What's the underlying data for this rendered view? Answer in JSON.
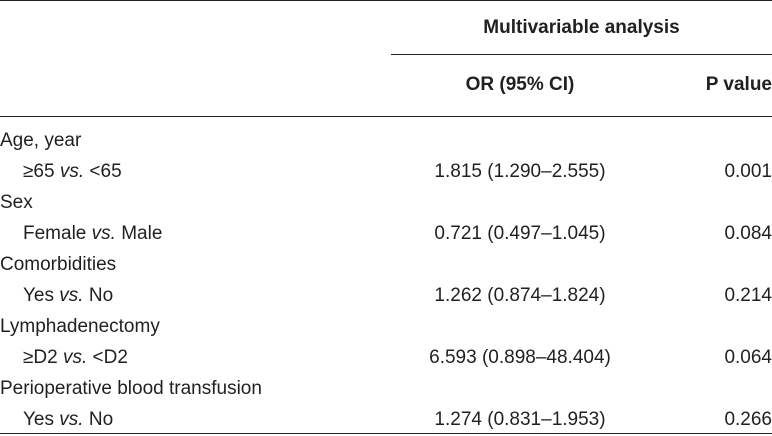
{
  "header": {
    "group_label": "Multivariable analysis",
    "col_or": "OR (95% CI)",
    "col_p": "P value"
  },
  "rows": [
    {
      "type": "group",
      "label": "Age, year"
    },
    {
      "type": "sub",
      "left": "≥65",
      "vs": "vs.",
      "right": "<65",
      "or": "1.815 (1.290–2.555)",
      "p": "0.001"
    },
    {
      "type": "group",
      "label": "Sex"
    },
    {
      "type": "sub",
      "left": "Female",
      "vs": "vs.",
      "right": "Male",
      "or": "0.721 (0.497–1.045)",
      "p": "0.084"
    },
    {
      "type": "group",
      "label": "Comorbidities"
    },
    {
      "type": "sub",
      "left": "Yes",
      "vs": "vs.",
      "right": "No",
      "or": "1.262 (0.874–1.824)",
      "p": "0.214"
    },
    {
      "type": "group",
      "label": "Lymphadenectomy"
    },
    {
      "type": "sub",
      "left": "≥D2",
      "vs": "vs.",
      "right": "<D2",
      "or": "6.593 (0.898–48.404)",
      "p": "0.064"
    },
    {
      "type": "group",
      "label": "Perioperative blood transfusion"
    },
    {
      "type": "sub",
      "left": "Yes",
      "vs": "vs.",
      "right": "No",
      "or": "1.274 (0.831–1.953)",
      "p": "0.266"
    }
  ]
}
